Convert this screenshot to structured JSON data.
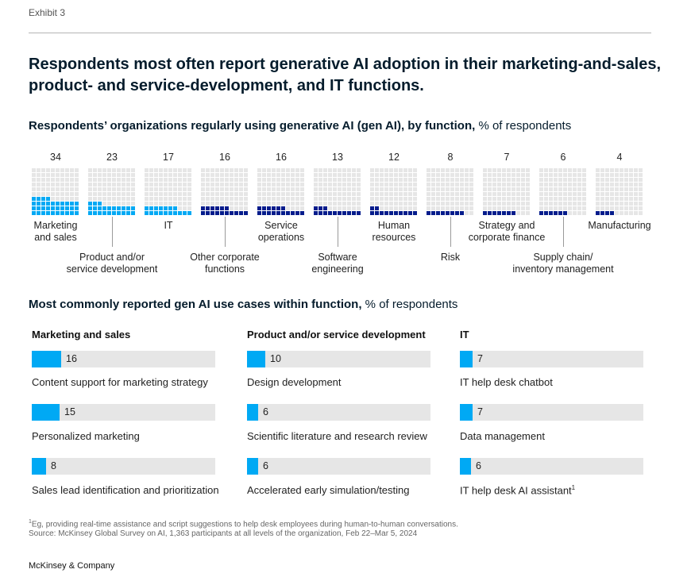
{
  "exhibit": "Exhibit 3",
  "title": "Respondents most often report generative AI adoption in their marketing-and-sales, product- and service-development, and IT functions.",
  "section1": {
    "title_bold": "Respondents’ organizations regularly using generative AI (gen AI), by function,",
    "title_unit": " % of respondents"
  },
  "section2": {
    "title_bold": "Most commonly reported gen AI use cases within function,",
    "title_unit": " % of respondents"
  },
  "colors": {
    "light_blue": "#00a9f4",
    "dark_blue": "#051c8c",
    "grid_empty": "#e6e6e6",
    "track": "#e6e6e6"
  },
  "chart_data": [
    {
      "type": "waffle",
      "categories": [
        "Marketing and sales",
        "Product and/or service development",
        "IT",
        "Other corporate functions",
        "Service operations",
        "Software engineering",
        "Human resources",
        "Risk",
        "Strategy and corporate finance",
        "Supply chain/ inventory management",
        "Manufacturing"
      ],
      "labels": [
        "Marketing\nand sales",
        "Product and/or\nservice development",
        "IT",
        "Other corporate\nfunctions",
        "Service\noperations",
        "Software\nengineering",
        "Human\nresources",
        "Risk",
        "Strategy and\ncorporate finance",
        "Supply chain/\ninventory management",
        "Manufacturing"
      ],
      "values": [
        34,
        23,
        17,
        16,
        16,
        13,
        12,
        8,
        7,
        6,
        4
      ],
      "highlight": [
        true,
        true,
        true,
        false,
        false,
        false,
        false,
        false,
        false,
        false,
        false
      ],
      "label_position": [
        "top",
        "bottom",
        "top",
        "bottom",
        "top",
        "bottom",
        "top",
        "bottom",
        "top",
        "bottom",
        "top"
      ],
      "ylim": [
        0,
        100
      ]
    },
    {
      "type": "bar",
      "orientation": "horizontal",
      "title": "Marketing and sales",
      "categories": [
        "Content support for marketing strategy",
        "Personalized marketing",
        "Sales lead identification and prioritization"
      ],
      "values": [
        16,
        15,
        8
      ]
    },
    {
      "type": "bar",
      "orientation": "horizontal",
      "title": "Product and/or service development",
      "categories": [
        "Design development",
        "Scientific literature and research review",
        "Accelerated early simulation/testing"
      ],
      "values": [
        10,
        6,
        6
      ]
    },
    {
      "type": "bar",
      "orientation": "horizontal",
      "title": "IT",
      "categories": [
        "IT help desk chatbot",
        "Data management",
        "IT help desk AI assistant"
      ],
      "values": [
        7,
        7,
        6
      ],
      "footnote_marks": [
        "",
        "",
        "1"
      ]
    }
  ],
  "footnote": {
    "note": "Eg, providing real-time assistance and script suggestions to help desk employees during human-to-human conversations.",
    "note_mark": "1",
    "source": "Source: McKinsey Global Survey on AI, 1,363 participants at all levels of the organization, Feb 22–Mar 5, 2024"
  },
  "brand": "McKinsey & Company"
}
